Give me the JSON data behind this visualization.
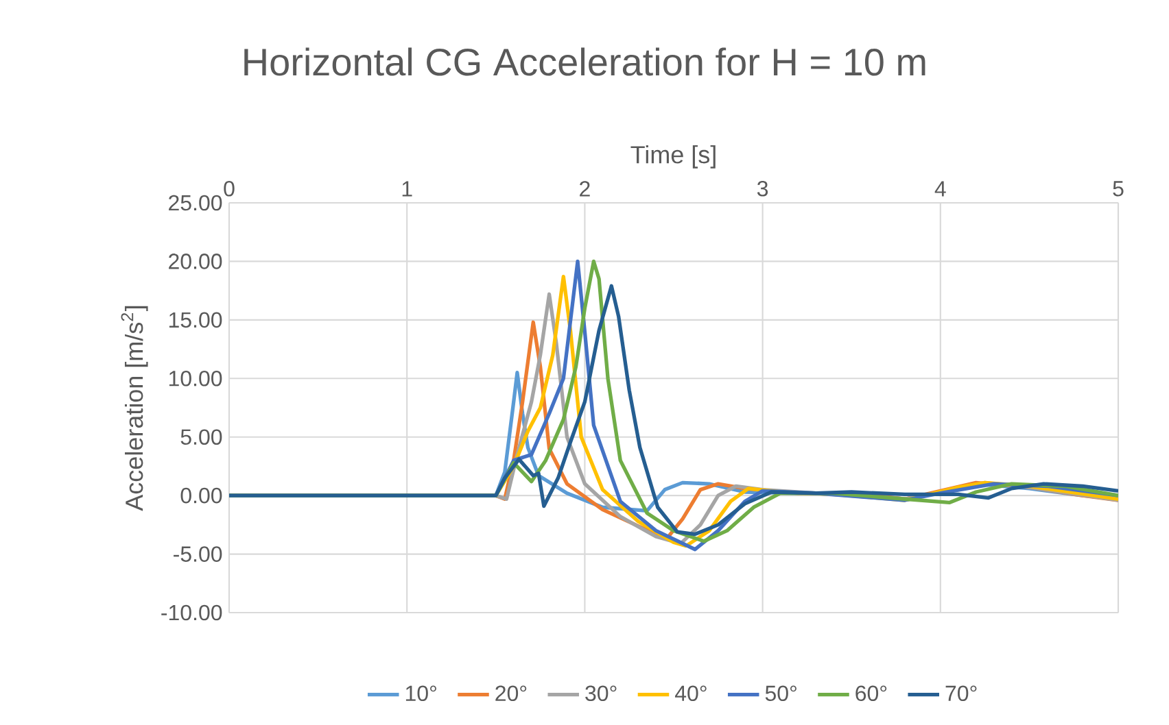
{
  "chart_data": {
    "type": "line",
    "title": "Horizontal CG Acceleration for H = 10 m",
    "xlabel": "Time [s]",
    "ylabel": "Acceleration [m/s$^{2}$]",
    "xlim": [
      0,
      5
    ],
    "xticks": [
      0,
      1,
      2,
      3,
      4,
      5
    ],
    "ylim": [
      -10,
      25
    ],
    "yticks": [
      {
        "value": -10,
        "label": "-10.00"
      },
      {
        "value": -5,
        "label": "-5.00"
      },
      {
        "value": 0,
        "label": "0.00"
      },
      {
        "value": 5,
        "label": "5.00"
      },
      {
        "value": 10,
        "label": "10.00"
      },
      {
        "value": 15,
        "label": "15.00"
      },
      {
        "value": 20,
        "label": "20.00"
      },
      {
        "value": 25,
        "label": "25.00"
      }
    ],
    "grid": true,
    "legend": "bottom",
    "marker": "none",
    "line_style": "solid",
    "series": [
      {
        "name": "10°",
        "color": "#5b9bd5",
        "x": [
          0,
          1.5,
          1.55,
          1.6,
          1.62,
          1.65,
          1.68,
          1.74,
          1.9,
          2.1,
          2.35,
          2.45,
          2.55,
          2.7,
          2.9,
          3.2,
          3.5,
          3.8,
          4.0,
          4.2,
          4.5,
          4.8,
          5
        ],
        "values": [
          0,
          0,
          2,
          8,
          10.5,
          7,
          4.1,
          1.7,
          0.2,
          -1,
          -1.3,
          0.5,
          1.1,
          1.0,
          0.3,
          0.2,
          0.2,
          -0.3,
          0.3,
          1.0,
          0.6,
          0,
          -0.3
        ]
      },
      {
        "name": "20°",
        "color": "#ed7d31",
        "x": [
          0,
          1.5,
          1.55,
          1.6,
          1.65,
          1.71,
          1.75,
          1.8,
          1.9,
          2.1,
          2.3,
          2.46,
          2.55,
          2.65,
          2.75,
          2.9,
          3.2,
          3.5,
          3.8,
          4.0,
          4.2,
          4.5,
          4.8,
          5
        ],
        "values": [
          0,
          0,
          -0.3,
          3,
          8,
          14.8,
          11,
          4,
          1,
          -1.2,
          -2.6,
          -3.7,
          -2,
          0.5,
          1.0,
          0.6,
          0.2,
          0.2,
          -0.3,
          0.4,
          1.1,
          0.7,
          0,
          -0.4
        ]
      },
      {
        "name": "30°",
        "color": "#a5a5a5",
        "x": [
          0,
          1.5,
          1.56,
          1.62,
          1.7,
          1.75,
          1.8,
          1.84,
          1.9,
          2.0,
          2.2,
          2.4,
          2.54,
          2.65,
          2.75,
          2.85,
          3.0,
          3.3,
          3.8,
          4.1,
          4.25,
          4.5,
          5
        ],
        "values": [
          0,
          0,
          -0.3,
          3.5,
          8,
          12,
          17.2,
          13,
          5,
          1,
          -1.8,
          -3.5,
          -4.1,
          -2.5,
          0,
          0.8,
          0.5,
          0.2,
          -0.3,
          0.6,
          1.1,
          0.7,
          -0.4
        ]
      },
      {
        "name": "40°",
        "color": "#ffc000",
        "x": [
          0,
          1.5,
          1.6,
          1.68,
          1.75,
          1.82,
          1.88,
          1.92,
          1.98,
          2.1,
          2.3,
          2.5,
          2.57,
          2.7,
          2.82,
          2.92,
          3.1,
          3.4,
          3.8,
          4.1,
          4.25,
          4.5,
          5
        ],
        "values": [
          0,
          0,
          2.5,
          5.5,
          7.5,
          12,
          18.7,
          14,
          5,
          0.5,
          -2.2,
          -4,
          -4.3,
          -3,
          -0.5,
          0.6,
          0.3,
          0.1,
          -0.4,
          0.7,
          1.1,
          0.8,
          -0.3
        ]
      },
      {
        "name": "50°",
        "color": "#4472c4",
        "x": [
          0,
          1.5,
          1.6,
          1.7,
          1.8,
          1.88,
          1.96,
          2.0,
          2.05,
          2.2,
          2.4,
          2.62,
          2.75,
          2.9,
          3.0,
          3.3,
          3.8,
          4.0,
          4.3,
          4.6,
          5
        ],
        "values": [
          0,
          0,
          3,
          3.5,
          7,
          10,
          20.0,
          14,
          6,
          -0.5,
          -3,
          -4.6,
          -3,
          -0.5,
          0.4,
          0.2,
          -0.4,
          0.2,
          1.0,
          0.8,
          0
        ]
      },
      {
        "name": "60°",
        "color": "#70ad47",
        "x": [
          0,
          1.5,
          1.6,
          1.7,
          1.78,
          1.88,
          1.95,
          2.0,
          2.05,
          2.08,
          2.13,
          2.2,
          2.35,
          2.5,
          2.67,
          2.8,
          2.95,
          3.1,
          3.4,
          3.8,
          4.05,
          4.2,
          4.4,
          4.7,
          5
        ],
        "values": [
          0,
          0,
          2.8,
          1.2,
          3,
          6.5,
          11,
          16,
          20.0,
          18.5,
          10,
          3,
          -1.5,
          -3,
          -3.9,
          -3,
          -1,
          0.2,
          0.2,
          -0.3,
          -0.6,
          0.3,
          1.0,
          0.8,
          0
        ]
      },
      {
        "name": "70°",
        "color": "#255e91",
        "x": [
          0,
          1.5,
          1.55,
          1.63,
          1.71,
          1.74,
          1.77,
          1.85,
          1.92,
          2.0,
          2.08,
          2.15,
          2.19,
          2.25,
          2.31,
          2.41,
          2.52,
          2.62,
          2.75,
          2.9,
          3.05,
          3.3,
          3.5,
          3.8,
          4.1,
          4.27,
          4.4,
          4.58,
          4.8,
          5
        ],
        "values": [
          0,
          0,
          1.5,
          3.1,
          1.7,
          1.9,
          -0.9,
          1.5,
          4.6,
          8,
          14.1,
          17.9,
          15.3,
          9,
          4.1,
          -1,
          -3.1,
          -3.3,
          -2.5,
          -0.7,
          0.3,
          0.2,
          0.3,
          0.1,
          0.1,
          -0.2,
          0.6,
          1.0,
          0.8,
          0.4
        ]
      }
    ]
  }
}
